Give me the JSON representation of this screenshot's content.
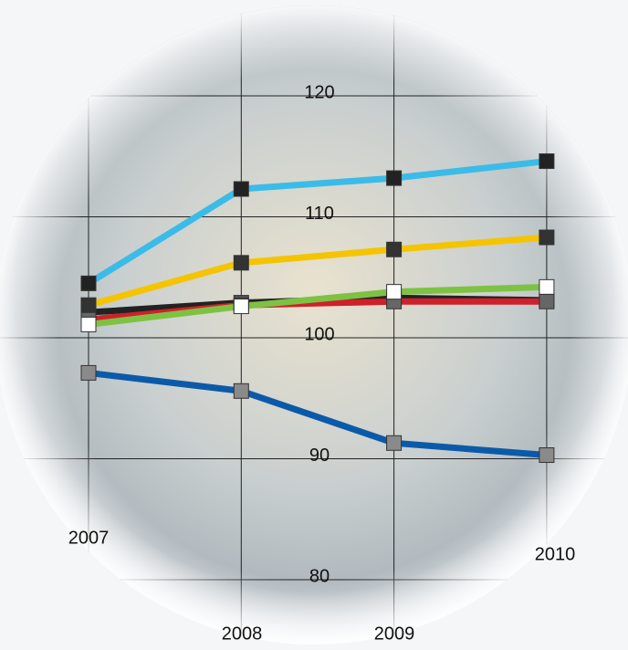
{
  "chart_data": {
    "type": "line",
    "categories": [
      "2007",
      "2008",
      "2009",
      "2010"
    ],
    "series": [
      {
        "color": "#0b5aa9",
        "marker_color": "#8a8a8a",
        "values": [
          97.1,
          95.6,
          91.3,
          90.3
        ]
      },
      {
        "color": "#222222",
        "marker_color": "#555555",
        "values": [
          102.1,
          102.9,
          103.3,
          103.1
        ]
      },
      {
        "color": "#d0202a",
        "marker_color": "#666666",
        "values": [
          101.5,
          102.7,
          103.0,
          103.0
        ]
      },
      {
        "color": "#7dc243",
        "marker_color": "#ffffff",
        "values": [
          101.1,
          102.6,
          103.8,
          104.2
        ]
      },
      {
        "color": "#f5c400",
        "marker_color": "#333333",
        "values": [
          102.7,
          106.2,
          107.3,
          108.3
        ]
      },
      {
        "color": "#3bbbe8",
        "marker_color": "#222222",
        "values": [
          104.5,
          112.3,
          113.2,
          114.6
        ]
      }
    ],
    "ylim": [
      80,
      120
    ],
    "yticks": [
      80,
      90,
      100,
      110,
      120
    ],
    "grid": true
  }
}
